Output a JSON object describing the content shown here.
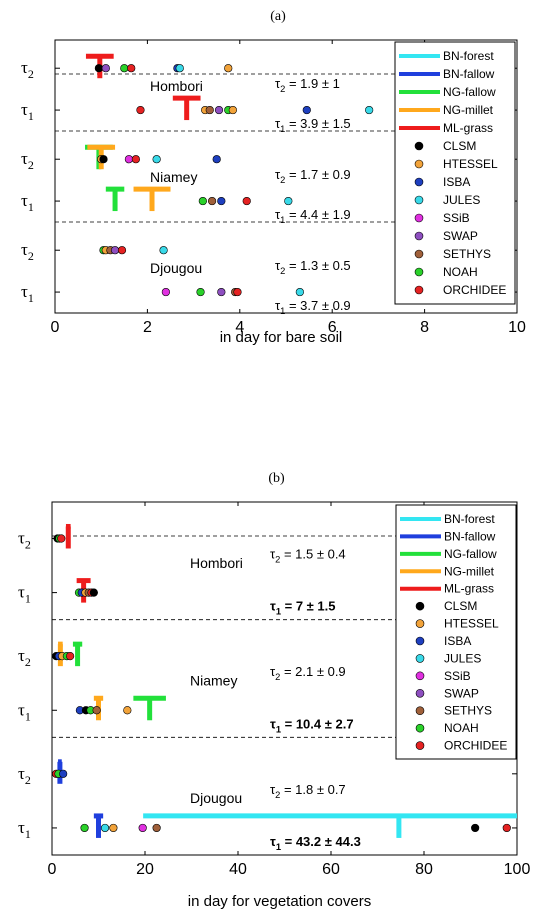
{
  "colors": {
    "BN-forest": "#33e6f2",
    "BN-fallow": "#1f3fdd",
    "NG-fallow": "#22e03a",
    "NG-millet": "#ffa81c",
    "ML-grass": "#ee1c1c",
    "CLSM": "#000000",
    "HTESSEL": "#f2a33a",
    "ISBA": "#1e3fbf",
    "JULES": "#39d9e8",
    "SSiB": "#e030e0",
    "SWAP": "#8e4fc0",
    "SETHYS": "#a0603a",
    "NOAH": "#2ad12a",
    "ORCHIDEE": "#e52222"
  },
  "legend": {
    "lines": [
      "BN-forest",
      "BN-fallow",
      "NG-fallow",
      "NG-millet",
      "ML-grass"
    ],
    "markers": [
      "CLSM",
      "HTESSEL",
      "ISBA",
      "JULES",
      "SSiB",
      "SWAP",
      "SETHYS",
      "NOAH",
      "ORCHIDEE"
    ]
  },
  "chart_data": [
    {
      "type": "scatter",
      "panel_label": "(a)",
      "xlabel": "in day for bare soil",
      "xlim": [
        0,
        10
      ],
      "xticks": [
        "0",
        "2",
        "4",
        "6",
        "8",
        "10"
      ],
      "legend_position": "top-right",
      "sites": [
        {
          "name": "Hombori",
          "tau2": {
            "label": "τ2 = 1.9 ± 1",
            "bold": false,
            "points": [
              [
                "CLSM",
                0.95
              ],
              [
                "SWAP",
                1.1
              ],
              [
                "NOAH",
                1.5
              ],
              [
                "ORCHIDEE",
                1.65
              ],
              [
                "ISBA",
                2.65
              ],
              [
                "JULES",
                2.7
              ],
              [
                "HTESSEL",
                3.75
              ]
            ],
            "bars": [
              [
                "ML-grass",
                0.97,
                0.3
              ]
            ]
          },
          "tau1": {
            "label": "τ1 = 3.9 ± 1.5",
            "bold": false,
            "points": [
              [
                "ORCHIDEE",
                1.85
              ],
              [
                "HTESSEL",
                3.25
              ],
              [
                "SETHYS",
                3.35
              ],
              [
                "SWAP",
                3.55
              ],
              [
                "NOAH",
                3.75
              ],
              [
                "HTESSEL",
                3.85
              ],
              [
                "ISBA",
                5.45
              ],
              [
                "JULES",
                6.8
              ]
            ],
            "bars": [
              [
                "ML-grass",
                2.85,
                0.3
              ]
            ]
          }
        },
        {
          "name": "Niamey",
          "tau2": {
            "label": "τ2 = 1.7 ± 0.9",
            "bold": false,
            "points": [
              [
                "HTESSEL",
                1.0
              ],
              [
                "CLSM",
                1.05
              ],
              [
                "SSiB",
                1.6
              ],
              [
                "ORCHIDEE",
                1.75
              ],
              [
                "JULES",
                2.2
              ],
              [
                "ISBA",
                3.5
              ]
            ],
            "bars": [
              [
                "NG-fallow",
                0.95,
                0.3
              ],
              [
                "NG-millet",
                1.0,
                0.3
              ]
            ]
          },
          "tau1": {
            "label": "τ1 = 4.4 ± 1.9",
            "bold": false,
            "points": [
              [
                "NOAH",
                3.2
              ],
              [
                "SETHYS",
                3.4
              ],
              [
                "ISBA",
                3.6
              ],
              [
                "ORCHIDEE",
                4.15
              ],
              [
                "JULES",
                5.05
              ]
            ],
            "bars": [
              [
                "NG-fallow",
                1.3,
                0.2
              ],
              [
                "NG-millet",
                2.1,
                0.4
              ]
            ]
          }
        },
        {
          "name": "Djougou",
          "tau2": {
            "label": "τ2 = 1.3 ± 0.5",
            "bold": false,
            "points": [
              [
                "NOAH",
                1.05
              ],
              [
                "HTESSEL",
                1.1
              ],
              [
                "SETHYS",
                1.2
              ],
              [
                "SWAP",
                1.3
              ],
              [
                "ORCHIDEE",
                1.45
              ],
              [
                "JULES",
                2.35
              ]
            ],
            "bars": []
          },
          "tau1": {
            "label": "τ1 = 3.7 ± 0.9",
            "bold": false,
            "points": [
              [
                "SSiB",
                2.4
              ],
              [
                "NOAH",
                3.15
              ],
              [
                "SWAP",
                3.6
              ],
              [
                "SETHYS",
                3.9
              ],
              [
                "ORCHIDEE",
                3.95
              ],
              [
                "JULES",
                5.3
              ]
            ],
            "bars": []
          }
        }
      ]
    },
    {
      "type": "scatter",
      "panel_label": "(b)",
      "xlabel": "in day for vegetation covers",
      "xlim": [
        0,
        100
      ],
      "xticks": [
        "0",
        "20",
        "40",
        "60",
        "80",
        "100"
      ],
      "legend_position": "top-right",
      "sites": [
        {
          "name": "Hombori",
          "tau2": {
            "label": "τ2 = 1.5 ± 0.4",
            "bold": false,
            "points": [
              [
                "CLSM",
                1.2
              ],
              [
                "NOAH",
                1.6
              ],
              [
                "ORCHIDEE",
                2.0
              ]
            ],
            "bars": [
              [
                "ML-grass",
                3.5,
                0.5
              ]
            ]
          },
          "tau1": {
            "label": "τ1 = 7 ± 1.5",
            "bold": true,
            "points": [
              [
                "NOAH",
                5.8
              ],
              [
                "ISBA",
                6.4
              ],
              [
                "HTESSEL",
                7.2
              ],
              [
                "SETHYS",
                7.9
              ],
              [
                "ORCHIDEE",
                8.5
              ],
              [
                "CLSM",
                9.0
              ]
            ],
            "bars": [
              [
                "ML-grass",
                6.8,
                1.5
              ]
            ]
          }
        },
        {
          "name": "Niamey",
          "tau2": {
            "label": "τ2 = 2.1 ± 0.9",
            "bold": false,
            "points": [
              [
                "CLSM",
                0.9
              ],
              [
                "ISBA",
                1.5
              ],
              [
                "HTESSEL",
                2.2
              ],
              [
                "NOAH",
                3.2
              ],
              [
                "ORCHIDEE",
                3.9
              ]
            ],
            "bars": [
              [
                "NG-millet",
                1.8,
                0.5
              ],
              [
                "NG-fallow",
                5.5,
                1.0
              ]
            ]
          },
          "tau1": {
            "label": "τ1 = 10.4 ± 2.7",
            "bold": true,
            "points": [
              [
                "ISBA",
                6.0
              ],
              [
                "CLSM",
                7.3
              ],
              [
                "NOAH",
                8.3
              ],
              [
                "SETHYS",
                9.6
              ],
              [
                "HTESSEL",
                16.2
              ]
            ],
            "bars": [
              [
                "NG-millet",
                10.0,
                1.0
              ],
              [
                "NG-fallow",
                21.0,
                3.5
              ]
            ]
          }
        },
        {
          "name": "Djougou",
          "tau2": {
            "label": "τ2 = 1.8 ± 0.7",
            "bold": false,
            "points": [
              [
                "ORCHIDEE",
                0.9
              ],
              [
                "NOAH",
                1.4
              ],
              [
                "ISBA",
                2.4
              ]
            ],
            "bars": [
              [
                "BN-fallow",
                1.7,
                0.4
              ]
            ]
          },
          "tau1": {
            "label": "τ1 = 43.2 ± 44.3",
            "bold": true,
            "points": [
              [
                "NOAH",
                7.0
              ],
              [
                "JULES",
                11.4
              ],
              [
                "HTESSEL",
                13.2
              ],
              [
                "SSiB",
                19.5
              ],
              [
                "SETHYS",
                22.5
              ],
              [
                "CLSM",
                91.0
              ],
              [
                "ORCHIDEE",
                97.8
              ]
            ],
            "bars": [
              [
                "BN-fallow",
                10.0,
                1.0
              ],
              [
                "BN-forest",
                74.6,
                55.0
              ]
            ]
          }
        }
      ]
    }
  ]
}
